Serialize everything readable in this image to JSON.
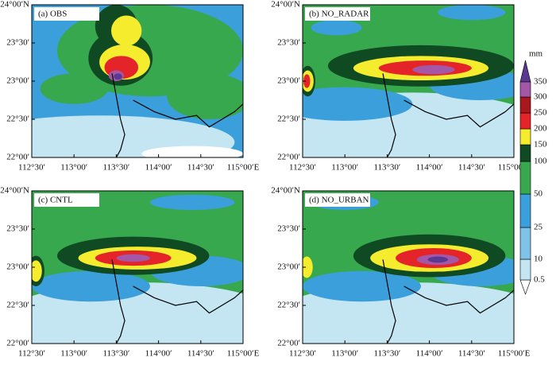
{
  "panels": [
    {
      "label": "(a) OBS"
    },
    {
      "label": "(b) NO_RADAR"
    },
    {
      "label": "(c) CNTL"
    },
    {
      "label": "(d) NO_URBAN"
    }
  ],
  "x_tick_labels": [
    "112°30′",
    "113°00′",
    "113°30′",
    "114°00′",
    "114°30′",
    "115°00′E"
  ],
  "y_tick_labels": [
    "24°00′N",
    "23°30′",
    "23°00′",
    "22°30′",
    "22°00′"
  ],
  "colorbar": {
    "unit": "mm",
    "labels": [
      "0.5",
      "10",
      "25",
      "50",
      "100",
      "150",
      "200",
      "250",
      "300",
      "350"
    ],
    "colors": [
      "#ffffff",
      "#c4e5f2",
      "#7fc4e8",
      "#3b9fdb",
      "#38a84f",
      "#0f4a22",
      "#f4ec2c",
      "#e42428",
      "#a8181c",
      "#a457a6",
      "#5a3a90"
    ]
  }
}
